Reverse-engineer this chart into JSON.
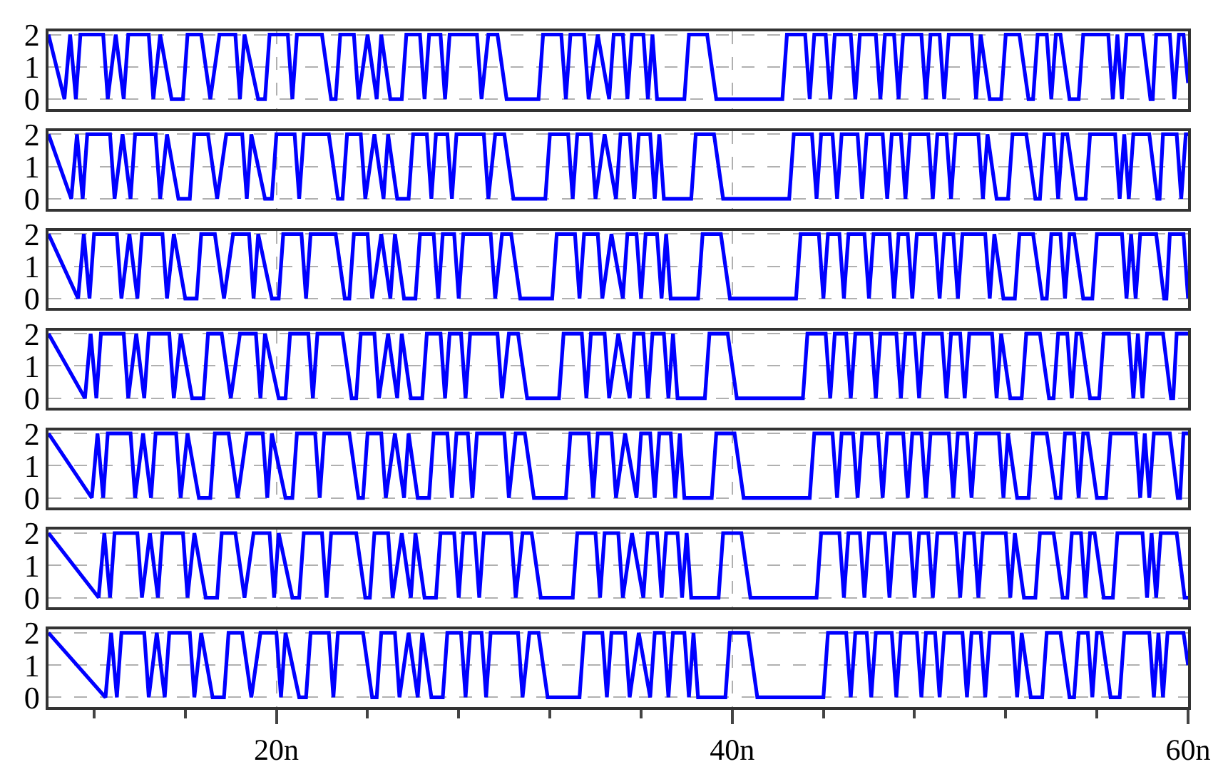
{
  "chart_data": [
    {
      "type": "line",
      "xlim": [
        10,
        60
      ],
      "xticks": [
        20,
        40,
        60
      ],
      "ylim": [
        -0.3,
        2.1
      ],
      "yticks": [
        0,
        1,
        2
      ],
      "grid": true,
      "tick_labels": "y",
      "series": [
        {
          "color": "#0000ff",
          "x": [
            10,
            10.7,
            10.95,
            11.2,
            11.4,
            12.4,
            12.6,
            12.95,
            13.3,
            13.5,
            14.4,
            14.6,
            14.9,
            15.4,
            15.9,
            16.1,
            16.7,
            17.1,
            17.5,
            18.2,
            18.4,
            18.6,
            19.2,
            19.5,
            19.7,
            20.5,
            20.7,
            20.9,
            22.0,
            22.4,
            22.6,
            22.8,
            23.4,
            23.6,
            24.0,
            24.4,
            24.6,
            25.0,
            25.5,
            25.7,
            26.3,
            26.5,
            26.7,
            27.2,
            27.4,
            27.6,
            28.8,
            29.0,
            29.3,
            29.7,
            30.1,
            31.5,
            31.7,
            32.5,
            32.7,
            32.9,
            33.5,
            33.7,
            34.1,
            34.6,
            34.8,
            35.2,
            35.4,
            35.6,
            36.1,
            36.3,
            36.5,
            36.7,
            37.9,
            38.1,
            38.9,
            39.3,
            42.2,
            42.4,
            43.2,
            43.4,
            43.6,
            44.1,
            44.3,
            44.5,
            45.2,
            45.4,
            45.6,
            46.3,
            46.5,
            46.7,
            47.1,
            47.3,
            47.5,
            48.3,
            48.5,
            48.7,
            49.1,
            49.3,
            49.5,
            50.5,
            50.7,
            50.9,
            51.3,
            51.8,
            52.0,
            52.6,
            53.0,
            53.2,
            53.4,
            53.8,
            54.0,
            54.2,
            54.4,
            54.8,
            55.2,
            55.4,
            56.5,
            56.7,
            56.9,
            57.1,
            57.3,
            58.0,
            58.35,
            58.45,
            58.6,
            59.2,
            59.4,
            59.6,
            59.8,
            60
          ],
          "values": [
            2,
            0,
            2,
            0,
            2,
            2,
            0,
            2,
            0,
            2,
            2,
            0,
            2,
            0,
            0,
            2,
            2,
            0,
            2,
            2,
            0,
            2,
            0,
            0,
            2,
            2,
            0,
            2,
            2,
            0,
            0,
            2,
            2,
            0,
            2,
            0,
            2,
            0,
            0,
            2,
            2,
            0,
            2,
            2,
            0,
            2,
            2,
            0,
            2,
            2,
            0,
            0,
            2,
            2,
            0,
            2,
            2,
            0,
            2,
            0,
            2,
            2,
            0,
            2,
            2,
            0,
            2,
            0,
            0,
            2,
            2,
            0,
            0,
            2,
            2,
            0,
            2,
            2,
            0,
            2,
            2,
            0,
            2,
            2,
            0,
            2,
            2,
            0,
            2,
            2,
            0,
            2,
            2,
            0,
            2,
            2,
            0,
            2,
            0,
            0,
            2,
            2,
            0,
            0,
            2,
            2,
            0,
            2,
            2,
            0,
            0,
            2,
            2,
            0,
            2,
            0,
            2,
            2,
            0,
            0,
            2,
            2,
            0,
            2,
            2,
            0.5
          ]
        }
      ]
    },
    {
      "type": "line",
      "xlim": [
        10,
        60
      ],
      "xticks": [
        20,
        40,
        60
      ],
      "ylim": [
        -0.3,
        2.1
      ],
      "yticks": [
        0,
        1,
        2
      ],
      "grid": true,
      "tick_labels": "y",
      "series": [
        {
          "color": "#0000ff",
          "x": [
            10,
            11.0,
            11.25,
            11.5,
            11.7,
            12.7,
            12.9,
            13.25,
            13.6,
            13.8,
            14.7,
            14.9,
            15.2,
            15.7,
            16.2,
            16.4,
            17.0,
            17.4,
            17.8,
            18.5,
            18.7,
            18.9,
            19.5,
            19.8,
            20.0,
            20.8,
            21.0,
            21.2,
            22.3,
            22.7,
            22.9,
            23.1,
            23.7,
            23.9,
            24.3,
            24.7,
            24.9,
            25.3,
            25.8,
            26.0,
            26.6,
            26.8,
            27.0,
            27.5,
            27.7,
            27.9,
            29.1,
            29.3,
            29.6,
            30.0,
            30.4,
            31.8,
            32.0,
            32.8,
            33.0,
            33.2,
            33.8,
            34.0,
            34.4,
            34.9,
            35.1,
            35.5,
            35.7,
            35.9,
            36.4,
            36.6,
            36.8,
            37.0,
            38.2,
            38.4,
            39.2,
            39.6,
            42.5,
            42.7,
            43.5,
            43.7,
            43.9,
            44.4,
            44.6,
            44.8,
            45.5,
            45.7,
            45.9,
            46.6,
            46.8,
            47.0,
            47.4,
            47.6,
            47.8,
            48.6,
            48.8,
            49.0,
            49.4,
            49.6,
            49.8,
            50.8,
            51.0,
            51.2,
            51.6,
            52.1,
            52.3,
            52.9,
            53.3,
            53.5,
            53.7,
            54.1,
            54.3,
            54.5,
            54.7,
            55.1,
            55.5,
            55.7,
            56.8,
            57.0,
            57.2,
            57.4,
            57.6,
            58.3,
            58.65,
            58.75,
            58.9,
            59.5,
            59.7,
            59.9,
            60
          ],
          "values": [
            2,
            0,
            2,
            0,
            2,
            2,
            0,
            2,
            0,
            2,
            2,
            0,
            2,
            0,
            0,
            2,
            2,
            0,
            2,
            2,
            0,
            2,
            0,
            0,
            2,
            2,
            0,
            2,
            2,
            0,
            0,
            2,
            2,
            0,
            2,
            0,
            2,
            0,
            0,
            2,
            2,
            0,
            2,
            2,
            0,
            2,
            2,
            0,
            2,
            2,
            0,
            0,
            2,
            2,
            0,
            2,
            2,
            0,
            2,
            0,
            2,
            2,
            0,
            2,
            2,
            0,
            2,
            0,
            0,
            2,
            2,
            0,
            0,
            2,
            2,
            0,
            2,
            2,
            0,
            2,
            2,
            0,
            2,
            2,
            0,
            2,
            2,
            0,
            2,
            2,
            0,
            2,
            2,
            0,
            2,
            2,
            0,
            2,
            0,
            0,
            2,
            2,
            0,
            0,
            2,
            2,
            0,
            2,
            2,
            0,
            0,
            2,
            2,
            0,
            2,
            0,
            2,
            2,
            0,
            0,
            2,
            2,
            0,
            2,
            2
          ]
        }
      ]
    },
    {
      "type": "line",
      "xlim": [
        10,
        60
      ],
      "xticks": [
        20,
        40,
        60
      ],
      "ylim": [
        -0.3,
        2.1
      ],
      "yticks": [
        0,
        1,
        2
      ],
      "grid": true,
      "tick_labels": "y",
      "series": [
        {
          "color": "#0000ff",
          "x": [
            10,
            11.3,
            11.55,
            11.8,
            12.0,
            13.0,
            13.2,
            13.55,
            13.9,
            14.1,
            15.0,
            15.2,
            15.5,
            16.0,
            16.5,
            16.7,
            17.3,
            17.7,
            18.1,
            18.8,
            19.0,
            19.2,
            19.8,
            20.1,
            20.3,
            21.1,
            21.3,
            21.5,
            22.6,
            23.0,
            23.2,
            23.4,
            24.0,
            24.2,
            24.6,
            25.0,
            25.2,
            25.6,
            26.1,
            26.3,
            26.9,
            27.1,
            27.3,
            27.8,
            28.0,
            28.2,
            29.4,
            29.6,
            29.9,
            30.3,
            30.7,
            32.1,
            32.3,
            33.1,
            33.3,
            33.5,
            34.1,
            34.3,
            34.7,
            35.2,
            35.4,
            35.8,
            36.0,
            36.2,
            36.7,
            36.9,
            37.1,
            37.3,
            38.5,
            38.7,
            39.5,
            39.9,
            42.8,
            43.0,
            43.8,
            44.0,
            44.2,
            44.7,
            44.9,
            45.1,
            45.8,
            46.0,
            46.2,
            46.9,
            47.1,
            47.3,
            47.7,
            47.9,
            48.1,
            48.9,
            49.1,
            49.3,
            49.7,
            49.9,
            50.1,
            51.1,
            51.3,
            51.5,
            51.9,
            52.4,
            52.6,
            53.2,
            53.6,
            53.8,
            54.0,
            54.4,
            54.6,
            54.8,
            55.0,
            55.4,
            55.8,
            56.0,
            57.1,
            57.3,
            57.5,
            57.7,
            57.9,
            58.6,
            58.95,
            59.05,
            59.2,
            59.8,
            60
          ],
          "values": [
            2,
            0,
            2,
            0,
            2,
            2,
            0,
            2,
            0,
            2,
            2,
            0,
            2,
            0,
            0,
            2,
            2,
            0,
            2,
            2,
            0,
            2,
            0,
            0,
            2,
            2,
            0,
            2,
            2,
            0,
            0,
            2,
            2,
            0,
            2,
            0,
            2,
            0,
            0,
            2,
            2,
            0,
            2,
            2,
            0,
            2,
            2,
            0,
            2,
            2,
            0,
            0,
            2,
            2,
            0,
            2,
            2,
            0,
            2,
            0,
            2,
            2,
            0,
            2,
            2,
            0,
            2,
            0,
            0,
            2,
            2,
            0,
            0,
            2,
            2,
            0,
            2,
            2,
            0,
            2,
            2,
            0,
            2,
            2,
            0,
            2,
            2,
            0,
            2,
            2,
            0,
            2,
            2,
            0,
            2,
            2,
            0,
            2,
            0,
            0,
            2,
            2,
            0,
            0,
            2,
            2,
            0,
            2,
            2,
            0,
            0,
            2,
            2,
            0,
            2,
            0,
            2,
            2,
            0,
            0,
            2,
            2,
            0
          ]
        }
      ]
    },
    {
      "type": "line",
      "xlim": [
        10,
        60
      ],
      "xticks": [
        20,
        40,
        60
      ],
      "ylim": [
        -0.3,
        2.1
      ],
      "yticks": [
        0,
        1,
        2
      ],
      "grid": true,
      "tick_labels": "y",
      "series": [
        {
          "color": "#0000ff",
          "x": [
            10,
            11.6,
            11.85,
            12.1,
            12.3,
            13.3,
            13.5,
            13.85,
            14.2,
            14.4,
            15.3,
            15.5,
            15.8,
            16.3,
            16.8,
            17.0,
            17.6,
            18.0,
            18.4,
            19.1,
            19.3,
            19.5,
            20.1,
            20.4,
            20.6,
            21.4,
            21.6,
            21.8,
            22.9,
            23.3,
            23.5,
            23.7,
            24.3,
            24.5,
            24.9,
            25.3,
            25.5,
            25.9,
            26.4,
            26.6,
            27.2,
            27.4,
            27.6,
            28.1,
            28.3,
            28.5,
            29.7,
            29.9,
            30.2,
            30.6,
            31.0,
            32.4,
            32.6,
            33.4,
            33.6,
            33.8,
            34.4,
            34.6,
            35.0,
            35.5,
            35.7,
            36.1,
            36.3,
            36.5,
            37.0,
            37.2,
            37.4,
            37.6,
            38.8,
            39.0,
            39.8,
            40.2,
            43.1,
            43.3,
            44.1,
            44.3,
            44.5,
            45.0,
            45.2,
            45.4,
            46.1,
            46.3,
            46.5,
            47.2,
            47.4,
            47.6,
            48.0,
            48.2,
            48.4,
            49.2,
            49.4,
            49.6,
            50.0,
            50.2,
            50.4,
            51.4,
            51.6,
            51.8,
            52.2,
            52.7,
            52.9,
            53.5,
            53.9,
            54.1,
            54.3,
            54.7,
            54.9,
            55.1,
            55.3,
            55.7,
            56.1,
            56.3,
            57.4,
            57.6,
            57.8,
            58.0,
            58.2,
            58.9,
            59.25,
            59.35,
            59.5,
            60
          ],
          "values": [
            2,
            0,
            2,
            0,
            2,
            2,
            0,
            2,
            0,
            2,
            2,
            0,
            2,
            0,
            0,
            2,
            2,
            0,
            2,
            2,
            0,
            2,
            0,
            0,
            2,
            2,
            0,
            2,
            2,
            0,
            0,
            2,
            2,
            0,
            2,
            0,
            2,
            0,
            0,
            2,
            2,
            0,
            2,
            2,
            0,
            2,
            2,
            0,
            2,
            2,
            0,
            0,
            2,
            2,
            0,
            2,
            2,
            0,
            2,
            0,
            2,
            2,
            0,
            2,
            2,
            0,
            2,
            0,
            0,
            2,
            2,
            0,
            0,
            2,
            2,
            0,
            2,
            2,
            0,
            2,
            2,
            0,
            2,
            2,
            0,
            2,
            2,
            0,
            2,
            2,
            0,
            2,
            2,
            0,
            2,
            2,
            0,
            2,
            0,
            0,
            2,
            2,
            0,
            0,
            2,
            2,
            0,
            2,
            2,
            0,
            0,
            2,
            2,
            0,
            2,
            0,
            2,
            2,
            0,
            0,
            2,
            2
          ]
        }
      ]
    },
    {
      "type": "line",
      "xlim": [
        10,
        60
      ],
      "xticks": [
        20,
        40,
        60
      ],
      "ylim": [
        -0.3,
        2.1
      ],
      "yticks": [
        0,
        1,
        2
      ],
      "grid": true,
      "tick_labels": "y",
      "series": [
        {
          "color": "#0000ff",
          "x": [
            10,
            11.9,
            12.15,
            12.4,
            12.6,
            13.6,
            13.8,
            14.15,
            14.5,
            14.7,
            15.6,
            15.8,
            16.1,
            16.6,
            17.1,
            17.3,
            17.9,
            18.3,
            18.7,
            19.4,
            19.6,
            19.8,
            20.4,
            20.7,
            20.9,
            21.7,
            21.9,
            22.1,
            23.2,
            23.6,
            23.8,
            24.0,
            24.6,
            24.8,
            25.2,
            25.6,
            25.8,
            26.2,
            26.7,
            26.9,
            27.5,
            27.7,
            27.9,
            28.4,
            28.6,
            28.8,
            30.0,
            30.2,
            30.5,
            30.9,
            31.3,
            32.7,
            32.9,
            33.7,
            33.9,
            34.1,
            34.7,
            34.9,
            35.3,
            35.8,
            36.0,
            36.4,
            36.6,
            36.8,
            37.3,
            37.5,
            37.7,
            37.9,
            39.1,
            39.3,
            40.1,
            40.5,
            43.4,
            43.6,
            44.4,
            44.6,
            44.8,
            45.3,
            45.5,
            45.7,
            46.4,
            46.6,
            46.8,
            47.5,
            47.7,
            47.9,
            48.3,
            48.5,
            48.7,
            49.5,
            49.7,
            49.9,
            50.3,
            50.5,
            50.7,
            51.7,
            51.9,
            52.1,
            52.5,
            53.0,
            53.2,
            53.8,
            54.2,
            54.4,
            54.6,
            55.0,
            55.2,
            55.4,
            55.6,
            56.0,
            56.4,
            56.6,
            57.7,
            57.9,
            58.1,
            58.3,
            58.5,
            59.2,
            59.55,
            59.65,
            59.8,
            60
          ],
          "values": [
            2,
            0,
            2,
            0,
            2,
            2,
            0,
            2,
            0,
            2,
            2,
            0,
            2,
            0,
            0,
            2,
            2,
            0,
            2,
            2,
            0,
            2,
            0,
            0,
            2,
            2,
            0,
            2,
            2,
            0,
            0,
            2,
            2,
            0,
            2,
            0,
            2,
            0,
            0,
            2,
            2,
            0,
            2,
            2,
            0,
            2,
            2,
            0,
            2,
            2,
            0,
            0,
            2,
            2,
            0,
            2,
            2,
            0,
            2,
            0,
            2,
            2,
            0,
            2,
            2,
            0,
            2,
            0,
            0,
            2,
            2,
            0,
            0,
            2,
            2,
            0,
            2,
            2,
            0,
            2,
            2,
            0,
            2,
            2,
            0,
            2,
            2,
            0,
            2,
            2,
            0,
            2,
            2,
            0,
            2,
            2,
            0,
            2,
            0,
            0,
            2,
            2,
            0,
            0,
            2,
            2,
            0,
            2,
            2,
            0,
            0,
            2,
            2,
            0,
            2,
            0,
            2,
            2,
            0,
            0,
            2,
            2
          ]
        }
      ]
    },
    {
      "type": "line",
      "xlim": [
        10,
        60
      ],
      "xticks": [
        20,
        40,
        60
      ],
      "ylim": [
        -0.3,
        2.1
      ],
      "yticks": [
        0,
        1,
        2
      ],
      "grid": true,
      "tick_labels": "y",
      "series": [
        {
          "color": "#0000ff",
          "x": [
            10,
            12.2,
            12.45,
            12.7,
            12.9,
            13.9,
            14.1,
            14.45,
            14.8,
            15.0,
            15.9,
            16.1,
            16.4,
            16.9,
            17.4,
            17.6,
            18.2,
            18.6,
            19.0,
            19.7,
            19.9,
            20.1,
            20.7,
            21.0,
            21.2,
            22.0,
            22.2,
            22.4,
            23.5,
            23.9,
            24.1,
            24.3,
            24.9,
            25.1,
            25.5,
            25.9,
            26.1,
            26.5,
            27.0,
            27.2,
            27.8,
            28.0,
            28.2,
            28.7,
            28.9,
            29.1,
            30.3,
            30.5,
            30.8,
            31.2,
            31.6,
            33.0,
            33.2,
            34.0,
            34.2,
            34.4,
            35.0,
            35.2,
            35.6,
            36.1,
            36.3,
            36.7,
            36.9,
            37.1,
            37.6,
            37.8,
            38.0,
            38.2,
            39.4,
            39.6,
            40.4,
            40.8,
            43.7,
            43.9,
            44.7,
            44.9,
            45.1,
            45.6,
            45.8,
            46.0,
            46.7,
            46.9,
            47.1,
            47.8,
            48.0,
            48.2,
            48.6,
            48.8,
            49.0,
            49.8,
            50.0,
            50.2,
            50.6,
            50.8,
            51.0,
            52.0,
            52.2,
            52.4,
            52.8,
            53.3,
            53.5,
            54.1,
            54.5,
            54.7,
            54.9,
            55.3,
            55.5,
            55.7,
            55.9,
            56.3,
            56.7,
            56.9,
            58.0,
            58.2,
            58.4,
            58.6,
            58.8,
            59.5,
            59.85,
            59.95,
            60
          ],
          "values": [
            2,
            0,
            2,
            0,
            2,
            2,
            0,
            2,
            0,
            2,
            2,
            0,
            2,
            0,
            0,
            2,
            2,
            0,
            2,
            2,
            0,
            2,
            0,
            0,
            2,
            2,
            0,
            2,
            2,
            0,
            0,
            2,
            2,
            0,
            2,
            0,
            2,
            0,
            0,
            2,
            2,
            0,
            2,
            2,
            0,
            2,
            2,
            0,
            2,
            2,
            0,
            0,
            2,
            2,
            0,
            2,
            2,
            0,
            2,
            0,
            2,
            2,
            0,
            2,
            2,
            0,
            2,
            0,
            0,
            2,
            2,
            0,
            0,
            2,
            2,
            0,
            2,
            2,
            0,
            2,
            2,
            0,
            2,
            2,
            0,
            2,
            2,
            0,
            2,
            2,
            0,
            2,
            2,
            0,
            2,
            2,
            0,
            2,
            0,
            0,
            2,
            2,
            0,
            0,
            2,
            2,
            0,
            2,
            2,
            0,
            0,
            2,
            2,
            0,
            2,
            0,
            2,
            2,
            0,
            0,
            0
          ]
        }
      ]
    },
    {
      "type": "line",
      "xlim": [
        10,
        60
      ],
      "xticks": [
        {
          "value": 12,
          "label": null
        },
        {
          "value": 16,
          "label": null
        },
        {
          "value": 20,
          "label": "20n"
        },
        {
          "value": 24,
          "label": null
        },
        {
          "value": 28,
          "label": null
        },
        {
          "value": 32,
          "label": null
        },
        {
          "value": 36,
          "label": null
        },
        {
          "value": 40,
          "label": "40n"
        },
        {
          "value": 44,
          "label": null
        },
        {
          "value": 48,
          "label": null
        },
        {
          "value": 52,
          "label": null
        },
        {
          "value": 56,
          "label": null
        },
        {
          "value": 60,
          "label": "60n"
        }
      ],
      "ylim": [
        -0.3,
        2.1
      ],
      "yticks": [
        0,
        1,
        2
      ],
      "grid": true,
      "series": [
        {
          "color": "#0000ff",
          "x": [
            10,
            12.5,
            12.75,
            13.0,
            13.2,
            14.2,
            14.4,
            14.75,
            15.1,
            15.3,
            16.2,
            16.4,
            16.7,
            17.2,
            17.7,
            17.9,
            18.5,
            18.9,
            19.3,
            20.0,
            20.2,
            20.4,
            21.0,
            21.3,
            21.5,
            22.3,
            22.5,
            22.7,
            23.8,
            24.2,
            24.4,
            24.6,
            25.2,
            25.4,
            25.8,
            26.2,
            26.4,
            26.8,
            27.3,
            27.5,
            28.1,
            28.3,
            28.5,
            29.0,
            29.2,
            29.4,
            30.6,
            30.8,
            31.1,
            31.5,
            31.9,
            33.3,
            33.5,
            34.3,
            34.5,
            34.7,
            35.3,
            35.5,
            35.9,
            36.4,
            36.6,
            37.0,
            37.2,
            37.4,
            37.9,
            38.1,
            38.3,
            38.5,
            39.7,
            39.9,
            40.7,
            41.1,
            44.0,
            44.2,
            45.0,
            45.2,
            45.4,
            45.9,
            46.1,
            46.3,
            47.0,
            47.2,
            47.4,
            48.1,
            48.3,
            48.5,
            48.9,
            49.1,
            49.3,
            50.1,
            50.3,
            50.5,
            50.9,
            51.1,
            51.3,
            52.3,
            52.5,
            52.7,
            53.1,
            53.6,
            53.8,
            54.4,
            54.8,
            55.0,
            55.2,
            55.6,
            55.8,
            56.0,
            56.2,
            56.6,
            57.0,
            57.2,
            58.3,
            58.5,
            58.7,
            58.9,
            59.1,
            59.8,
            60
          ],
          "values": [
            2,
            0,
            2,
            0,
            2,
            2,
            0,
            2,
            0,
            2,
            2,
            0,
            2,
            0,
            0,
            2,
            2,
            0,
            2,
            2,
            0,
            2,
            0,
            0,
            2,
            2,
            0,
            2,
            2,
            0,
            0,
            2,
            2,
            0,
            2,
            0,
            2,
            0,
            0,
            2,
            2,
            0,
            2,
            2,
            0,
            2,
            2,
            0,
            2,
            2,
            0,
            0,
            2,
            2,
            0,
            2,
            2,
            0,
            2,
            0,
            2,
            2,
            0,
            2,
            2,
            0,
            2,
            0,
            0,
            2,
            2,
            0,
            0,
            2,
            2,
            0,
            2,
            2,
            0,
            2,
            2,
            0,
            2,
            2,
            0,
            2,
            2,
            0,
            2,
            2,
            0,
            2,
            2,
            0,
            2,
            2,
            0,
            2,
            0,
            0,
            2,
            2,
            0,
            0,
            2,
            2,
            0,
            2,
            2,
            0,
            0,
            2,
            2,
            0,
            2,
            0,
            2,
            2,
            1
          ]
        }
      ]
    }
  ]
}
